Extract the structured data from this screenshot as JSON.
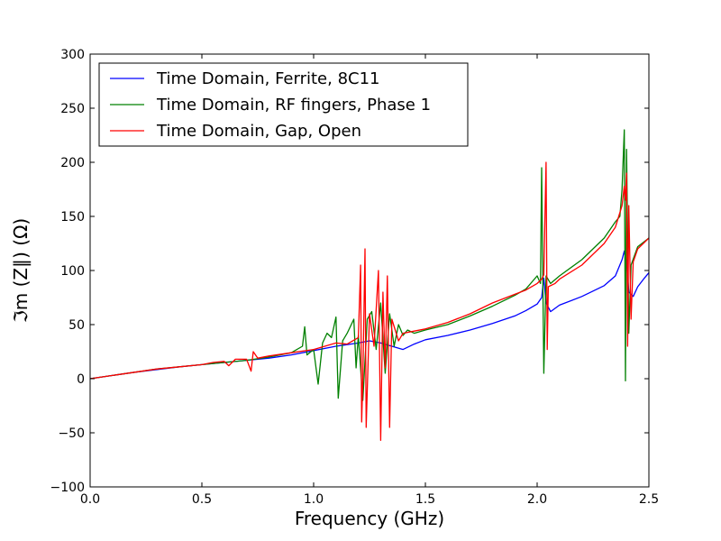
{
  "chart_data": {
    "type": "line",
    "title": "",
    "xlabel": "Frequency (GHz)",
    "ylabel": "ℑm (Z∥) (Ω)",
    "xlim": [
      0.0,
      2.5
    ],
    "ylim": [
      -100,
      300
    ],
    "xticks": [
      0.0,
      0.5,
      1.0,
      1.5,
      2.0,
      2.5
    ],
    "xtick_labels": [
      "0.0",
      "0.5",
      "1.0",
      "1.5",
      "2.0",
      "2.5"
    ],
    "yticks": [
      -100,
      -50,
      0,
      50,
      100,
      150,
      200,
      250,
      300
    ],
    "ytick_labels": [
      "−100",
      "−50",
      "0",
      "50",
      "100",
      "150",
      "200",
      "250",
      "300"
    ],
    "grid": false,
    "legend_position": "upper-left",
    "series": [
      {
        "name": "Time Domain, Ferrite, 8C11",
        "color": "#0000ff",
        "points": [
          [
            0.0,
            0
          ],
          [
            0.1,
            3
          ],
          [
            0.2,
            6
          ],
          [
            0.3,
            8.5
          ],
          [
            0.4,
            11
          ],
          [
            0.5,
            13
          ],
          [
            0.6,
            15
          ],
          [
            0.7,
            17
          ],
          [
            0.8,
            19
          ],
          [
            0.9,
            22
          ],
          [
            1.0,
            26
          ],
          [
            1.1,
            30
          ],
          [
            1.2,
            33
          ],
          [
            1.25,
            35
          ],
          [
            1.3,
            33
          ],
          [
            1.35,
            30
          ],
          [
            1.4,
            27
          ],
          [
            1.45,
            32
          ],
          [
            1.5,
            36
          ],
          [
            1.6,
            40
          ],
          [
            1.7,
            45
          ],
          [
            1.8,
            51
          ],
          [
            1.9,
            58
          ],
          [
            1.95,
            63
          ],
          [
            2.0,
            69
          ],
          [
            2.02,
            75
          ],
          [
            2.03,
            93
          ],
          [
            2.04,
            70
          ],
          [
            2.06,
            62
          ],
          [
            2.1,
            68
          ],
          [
            2.2,
            76
          ],
          [
            2.3,
            86
          ],
          [
            2.35,
            95
          ],
          [
            2.38,
            110
          ],
          [
            2.39,
            118
          ],
          [
            2.4,
            108
          ],
          [
            2.41,
            80
          ],
          [
            2.42,
            78
          ],
          [
            2.43,
            76
          ],
          [
            2.45,
            85
          ],
          [
            2.48,
            93
          ],
          [
            2.5,
            98
          ]
        ]
      },
      {
        "name": "Time Domain, RF fingers, Phase 1",
        "color": "#008000",
        "points": [
          [
            0.0,
            0
          ],
          [
            0.1,
            3
          ],
          [
            0.2,
            6
          ],
          [
            0.3,
            9
          ],
          [
            0.4,
            11
          ],
          [
            0.5,
            13
          ],
          [
            0.6,
            15
          ],
          [
            0.7,
            17
          ],
          [
            0.8,
            20
          ],
          [
            0.9,
            24
          ],
          [
            0.95,
            30
          ],
          [
            0.96,
            48
          ],
          [
            0.97,
            22
          ],
          [
            1.0,
            27
          ],
          [
            1.02,
            -5
          ],
          [
            1.04,
            33
          ],
          [
            1.06,
            42
          ],
          [
            1.08,
            38
          ],
          [
            1.1,
            57
          ],
          [
            1.11,
            -18
          ],
          [
            1.13,
            35
          ],
          [
            1.15,
            42
          ],
          [
            1.18,
            55
          ],
          [
            1.19,
            10
          ],
          [
            1.2,
            40
          ],
          [
            1.22,
            -20
          ],
          [
            1.24,
            55
          ],
          [
            1.26,
            62
          ],
          [
            1.28,
            27
          ],
          [
            1.3,
            70
          ],
          [
            1.32,
            5
          ],
          [
            1.34,
            60
          ],
          [
            1.36,
            30
          ],
          [
            1.38,
            50
          ],
          [
            1.4,
            40
          ],
          [
            1.42,
            45
          ],
          [
            1.45,
            42
          ],
          [
            1.5,
            45
          ],
          [
            1.6,
            50
          ],
          [
            1.7,
            58
          ],
          [
            1.8,
            67
          ],
          [
            1.9,
            77
          ],
          [
            1.95,
            83
          ],
          [
            2.0,
            95
          ],
          [
            2.015,
            88
          ],
          [
            2.02,
            195
          ],
          [
            2.03,
            5
          ],
          [
            2.04,
            95
          ],
          [
            2.06,
            88
          ],
          [
            2.1,
            95
          ],
          [
            2.2,
            110
          ],
          [
            2.3,
            130
          ],
          [
            2.35,
            145
          ],
          [
            2.37,
            150
          ],
          [
            2.38,
            175
          ],
          [
            2.39,
            230
          ],
          [
            2.395,
            -2
          ],
          [
            2.4,
            212
          ],
          [
            2.41,
            42
          ],
          [
            2.42,
            105
          ],
          [
            2.45,
            122
          ],
          [
            2.5,
            130
          ]
        ]
      },
      {
        "name": "Time Domain, Gap, Open",
        "color": "#ff0000",
        "points": [
          [
            0.0,
            0
          ],
          [
            0.1,
            3
          ],
          [
            0.2,
            6
          ],
          [
            0.3,
            9
          ],
          [
            0.4,
            11
          ],
          [
            0.5,
            13
          ],
          [
            0.55,
            15
          ],
          [
            0.6,
            16
          ],
          [
            0.62,
            12
          ],
          [
            0.65,
            18
          ],
          [
            0.7,
            18
          ],
          [
            0.72,
            7
          ],
          [
            0.73,
            25
          ],
          [
            0.75,
            19
          ],
          [
            0.8,
            21
          ],
          [
            0.9,
            24
          ],
          [
            1.0,
            27
          ],
          [
            1.1,
            33
          ],
          [
            1.15,
            32
          ],
          [
            1.2,
            38
          ],
          [
            1.21,
            105
          ],
          [
            1.215,
            -40
          ],
          [
            1.22,
            0
          ],
          [
            1.23,
            120
          ],
          [
            1.235,
            -45
          ],
          [
            1.25,
            60
          ],
          [
            1.27,
            30
          ],
          [
            1.29,
            100
          ],
          [
            1.3,
            -57
          ],
          [
            1.31,
            80
          ],
          [
            1.32,
            10
          ],
          [
            1.33,
            95
          ],
          [
            1.34,
            -45
          ],
          [
            1.35,
            55
          ],
          [
            1.38,
            35
          ],
          [
            1.4,
            42
          ],
          [
            1.45,
            44
          ],
          [
            1.5,
            46
          ],
          [
            1.6,
            52
          ],
          [
            1.7,
            60
          ],
          [
            1.8,
            70
          ],
          [
            1.9,
            78
          ],
          [
            1.95,
            82
          ],
          [
            2.0,
            88
          ],
          [
            2.02,
            92
          ],
          [
            2.03,
            96
          ],
          [
            2.04,
            200
          ],
          [
            2.045,
            27
          ],
          [
            2.05,
            85
          ],
          [
            2.08,
            88
          ],
          [
            2.1,
            92
          ],
          [
            2.2,
            105
          ],
          [
            2.3,
            125
          ],
          [
            2.35,
            140
          ],
          [
            2.38,
            160
          ],
          [
            2.39,
            178
          ],
          [
            2.395,
            165
          ],
          [
            2.4,
            190
          ],
          [
            2.405,
            30
          ],
          [
            2.41,
            160
          ],
          [
            2.42,
            55
          ],
          [
            2.43,
            108
          ],
          [
            2.45,
            120
          ],
          [
            2.5,
            130
          ]
        ]
      }
    ]
  }
}
